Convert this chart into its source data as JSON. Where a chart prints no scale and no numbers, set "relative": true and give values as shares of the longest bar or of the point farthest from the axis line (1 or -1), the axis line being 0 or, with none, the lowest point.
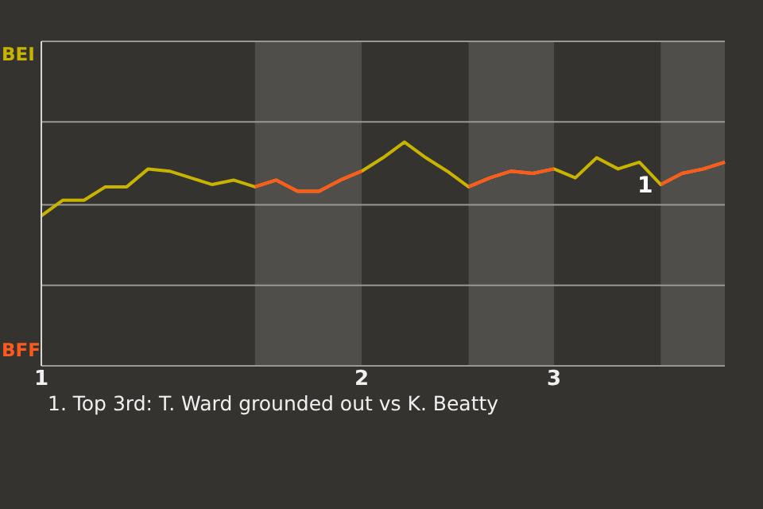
{
  "chart_data": {
    "type": "line",
    "relative": true,
    "categories": [
      "1",
      null,
      null,
      null,
      null,
      null,
      null,
      null,
      null,
      null,
      null,
      null,
      null,
      null,
      null,
      "2",
      null,
      null,
      null,
      null,
      null,
      null,
      null,
      null,
      "3",
      null,
      null,
      null,
      null,
      null,
      null,
      null,
      null
    ],
    "series": [
      {
        "color": "#c8b400",
        "values": [
          0.67,
          0.74,
          0.74,
          0.8,
          0.8,
          0.88,
          0.87,
          0.84,
          0.81,
          0.83,
          0.8,
          0.83,
          0.78,
          0.78,
          0.83,
          0.87,
          0.93,
          1,
          0.93,
          0.87,
          0.8,
          0.84,
          0.87,
          0.86,
          0.88,
          0.84,
          0.93,
          0.88,
          0.91,
          0.81,
          0.86,
          0.88,
          0.91
        ]
      },
      {
        "color": "#ff5a1e",
        "values": [
          null,
          null,
          null,
          null,
          null,
          null,
          null,
          null,
          null,
          null,
          0.8,
          0.83,
          0.78,
          0.78,
          0.83,
          0.87,
          null,
          null,
          null,
          null,
          0.8,
          0.84,
          0.87,
          0.86,
          0.88,
          null,
          null,
          null,
          null,
          0.81,
          0.86,
          0.88,
          0.91
        ]
      }
    ],
    "ref_lines": [
      {
        "axis": "y",
        "value": 0,
        "color": "#9a9894"
      },
      {
        "axis": "y",
        "value": 0.36,
        "color": "#9a9894"
      },
      {
        "axis": "y",
        "value": 0.72,
        "color": "#9a9894"
      },
      {
        "axis": "y",
        "value": 1.09,
        "color": "#9a9894"
      },
      {
        "axis": "y",
        "value": 1.45,
        "color": "#9a9894"
      }
    ],
    "annotations": [
      "BEI",
      "BFF",
      "1",
      "1. Top 3rd: T. Ward grounded out vs K. Beatty"
    ]
  }
}
